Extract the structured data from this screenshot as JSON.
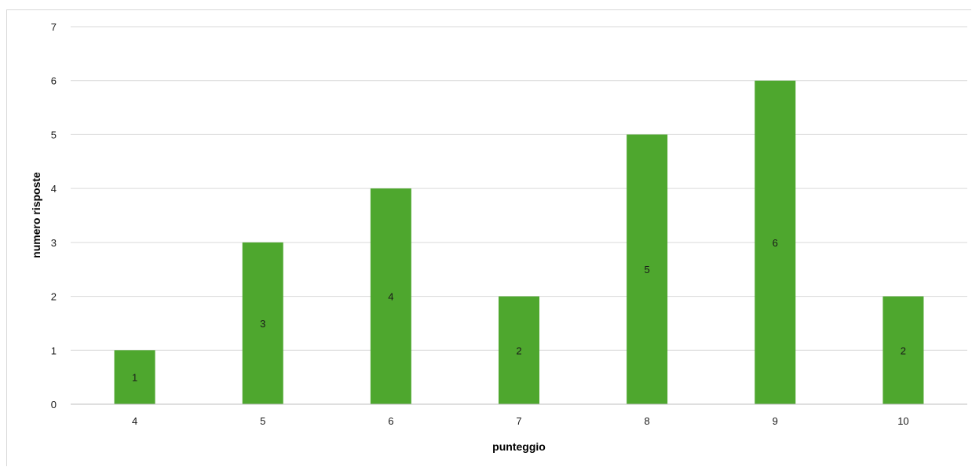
{
  "chart_data": {
    "type": "bar",
    "categories": [
      "4",
      "5",
      "6",
      "7",
      "8",
      "9",
      "10"
    ],
    "values": [
      1,
      3,
      4,
      2,
      5,
      6,
      2
    ],
    "xlabel": "punteggio",
    "ylabel": "numero risposte",
    "ylim": [
      0,
      7
    ],
    "yticks": [
      0,
      1,
      2,
      3,
      4,
      5,
      6,
      7
    ],
    "grid": true,
    "legend": "none",
    "bar_color": "#4ea72e",
    "data_labels": "inside-center"
  }
}
